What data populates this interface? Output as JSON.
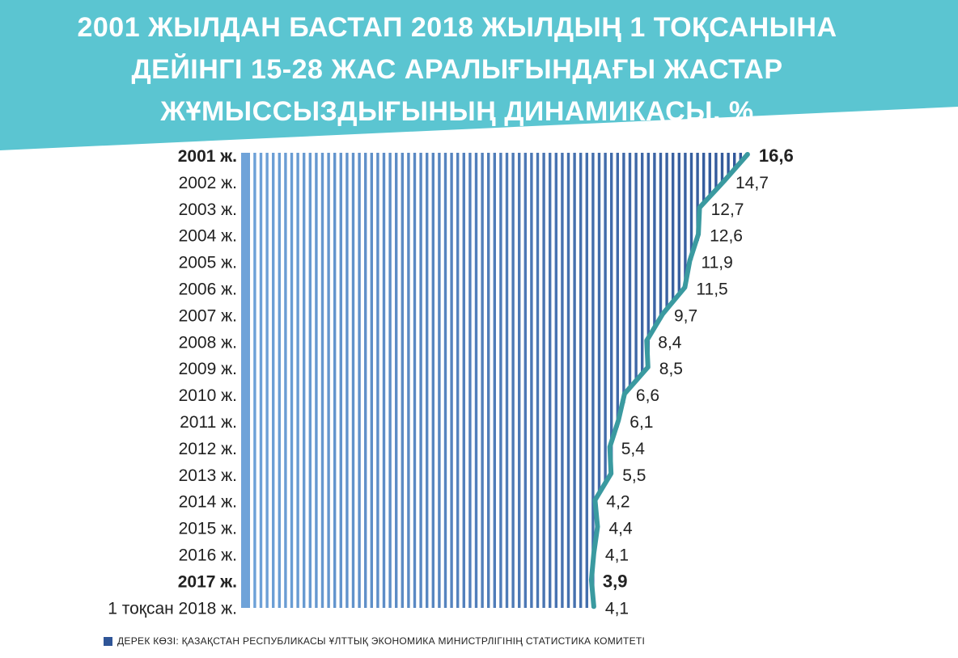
{
  "title_lines": [
    "2001 ЖЫЛДАН БАСТАП 2018 ЖЫЛДЫҢ 1 ТОҚСАНЫНА",
    "ДЕЙІНГІ 15-28 ЖАС АРАЛЫҒЫНДАҒЫ ЖАСТАР",
    "ЖҰМЫССЫЗДЫҒЫНЫҢ ДИНАМИКАСЫ, %"
  ],
  "source": "ДЕРЕК КӨЗІ: ҚАЗАҚСТАН РЕСПУБЛИКАСЫ  ҰЛТТЫҚ ЭКОНОМИКА МИНИСТРЛІГІНІҢ СТАТИСТИКА КОМИТЕТІ",
  "colors": {
    "banner": "#5bc5d1",
    "line": "#3a9aa0",
    "stripe_light": "#6fa3d9",
    "stripe_dark": "#2f5597",
    "text": "#222222"
  },
  "chart_data": {
    "type": "line",
    "orientation": "vertical (years down, values across)",
    "categories": [
      "2001 ж.",
      "2002 ж.",
      "2003 ж.",
      "2004 ж.",
      "2005 ж.",
      "2006 ж.",
      "2007 ж.",
      "2008 ж.",
      "2009 ж.",
      "2010 ж.",
      "2011 ж.",
      "2012 ж.",
      "2013 ж.",
      "2014 ж.",
      "2015 ж.",
      "2016 ж.",
      "2017 ж.",
      "1 тоқсан 2018  ж."
    ],
    "value_labels": [
      "16,6",
      "14,7",
      "12,7",
      "12,6",
      "11,9",
      "11,5",
      "9,7",
      "8,4",
      "8,5",
      "6,6",
      "6,1",
      "5,4",
      "5,5",
      "4,2",
      "4,4",
      "4,1",
      "3,9",
      "4,1"
    ],
    "values": [
      16.6,
      14.7,
      12.7,
      12.6,
      11.9,
      11.5,
      9.7,
      8.4,
      8.5,
      6.6,
      6.1,
      5.4,
      5.5,
      4.2,
      4.4,
      4.1,
      3.9,
      4.1
    ],
    "bold_indices": [
      0,
      16
    ],
    "unit": "%"
  }
}
